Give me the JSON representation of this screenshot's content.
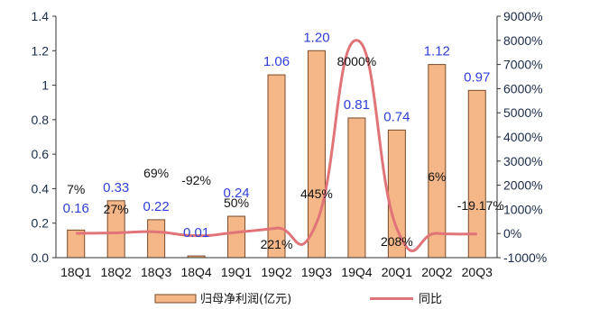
{
  "chart_data": {
    "type": "bar",
    "categories": [
      "18Q1",
      "18Q2",
      "18Q3",
      "18Q4",
      "19Q1",
      "19Q2",
      "19Q3",
      "19Q4",
      "20Q1",
      "20Q2",
      "20Q3"
    ],
    "series": [
      {
        "name": "归母净利润(亿元)",
        "type": "bar",
        "axis": "left",
        "values": [
          0.16,
          0.33,
          0.22,
          0.01,
          0.24,
          1.06,
          1.2,
          0.81,
          0.74,
          1.12,
          0.97
        ],
        "labels": [
          "0.16",
          "0.33",
          "0.22",
          "0.01",
          "0.24",
          "1.06",
          "1.20",
          "0.81",
          "0.74",
          "1.12",
          "0.97"
        ]
      },
      {
        "name": "同比",
        "type": "line",
        "axis": "right",
        "values": [
          7,
          27,
          69,
          -92,
          50,
          221,
          445,
          8000,
          208,
          6,
          -19.17
        ],
        "labels": [
          "7%",
          "27%",
          "69%",
          "-92%",
          "50%",
          "221%",
          "445%",
          "8000%",
          "208%",
          "6%",
          "-19.17%"
        ]
      }
    ],
    "ylim_left": [
      0,
      1.4
    ],
    "yticks_left": [
      "0.0",
      "0.2",
      "0.4",
      "0.6",
      "0.8",
      "1",
      "1.2",
      "1.4"
    ],
    "ylim_right": [
      -1000,
      9000
    ],
    "yticks_right": [
      "-1000%",
      "0%",
      "1000%",
      "2000%",
      "3000%",
      "4000%",
      "5000%",
      "6000%",
      "7000%",
      "8000%",
      "9000%"
    ],
    "legend_position": "bottom",
    "colors": {
      "bar_fill": "#f5b788",
      "bar_edge": "#7a4a2a",
      "line": "#e07478",
      "value_label": "#2f3fd6"
    }
  }
}
